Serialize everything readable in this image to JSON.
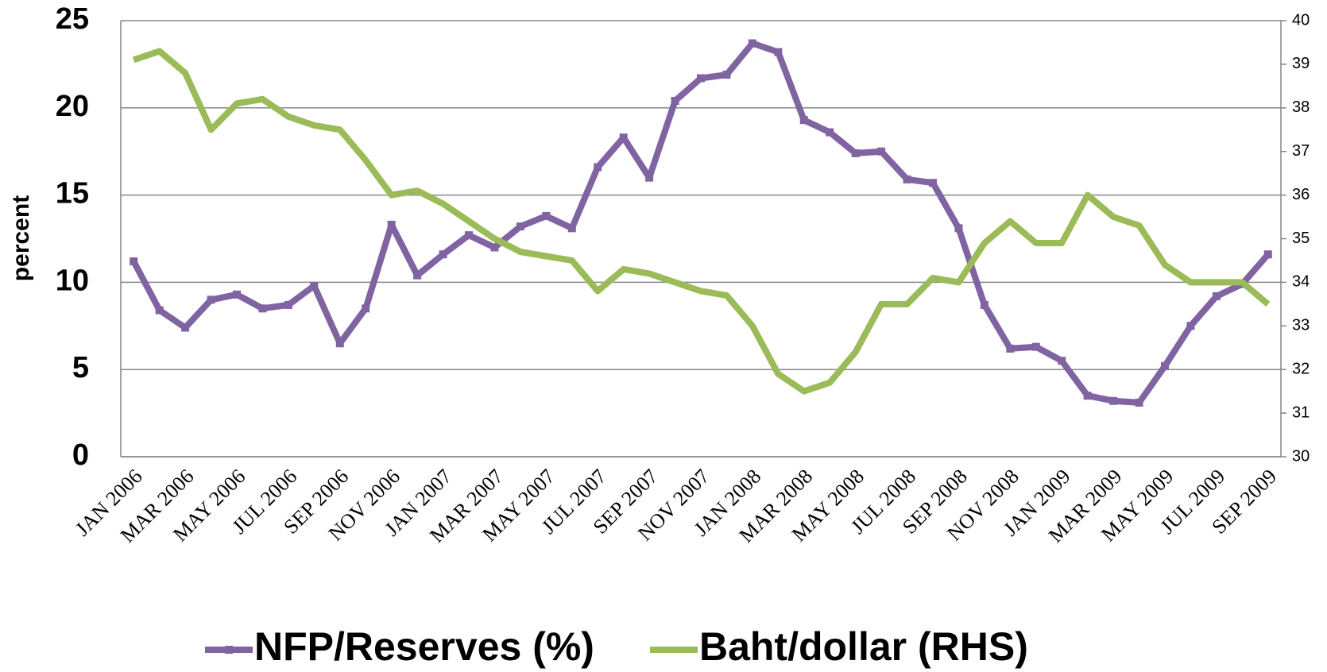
{
  "chart_data": {
    "type": "line",
    "y_label": "percent",
    "categories": [
      "JAN 2006",
      null,
      "MAR 2006",
      null,
      "MAY 2006",
      null,
      "JUL 2006",
      null,
      "SEP 2006",
      null,
      "NOV 2006",
      null,
      "JAN 2007",
      null,
      "MAR 2007",
      null,
      "MAY 2007",
      null,
      "JUL 2007",
      null,
      "SEP 2007",
      null,
      "NOV 2007",
      null,
      "JAN 2008",
      null,
      "MAR 2008",
      null,
      "MAY 2008",
      null,
      "JUL 2008",
      null,
      "SEP 2008",
      null,
      "NOV 2008",
      null,
      "JAN 2009",
      null,
      "MAR 2009",
      null,
      "MAY 2009",
      null,
      "JUL 2009",
      null,
      "SEP 2009"
    ],
    "series": [
      {
        "name": "NFP/Reserves (%)",
        "color": "#8064a2",
        "values": [
          11.2,
          8.4,
          7.4,
          9.0,
          9.3,
          8.5,
          8.7,
          9.8,
          6.5,
          8.5,
          13.3,
          10.4,
          11.6,
          12.7,
          12.0,
          13.2,
          13.8,
          13.1,
          16.6,
          18.3,
          16.0,
          20.4,
          21.7,
          21.9,
          23.7,
          23.2,
          19.3,
          18.6,
          17.4,
          17.5,
          15.9,
          15.7,
          13.1,
          8.7,
          6.2,
          6.3,
          5.5,
          3.5,
          3.2,
          3.1,
          5.2,
          7.5,
          9.2,
          9.9,
          11.6
        ]
      },
      {
        "name": "Baht/dollar (RHS)",
        "color": "#9bbb59",
        "axis": "y2",
        "values": [
          39.1,
          39.3,
          38.8,
          37.5,
          38.1,
          38.2,
          37.8,
          37.6,
          37.5,
          36.8,
          36.0,
          36.1,
          35.8,
          35.4,
          35.0,
          34.7,
          34.6,
          34.5,
          33.8,
          34.3,
          34.2,
          34.0,
          33.8,
          33.7,
          33.0,
          31.9,
          31.5,
          31.7,
          32.4,
          33.5,
          33.5,
          34.1,
          34.0,
          34.9,
          35.4,
          34.9,
          34.9,
          36.0,
          35.5,
          35.3,
          34.4,
          34.0,
          34.0,
          34.0,
          33.5
        ]
      }
    ],
    "ylim": [
      0,
      25
    ],
    "yticks": [
      0,
      5,
      10,
      15,
      20,
      25
    ],
    "y2lim": [
      30,
      40
    ],
    "y2ticks": [
      30,
      31,
      32,
      33,
      34,
      35,
      36,
      37,
      38,
      39,
      40
    ],
    "grid": true,
    "legend": "bottom"
  }
}
